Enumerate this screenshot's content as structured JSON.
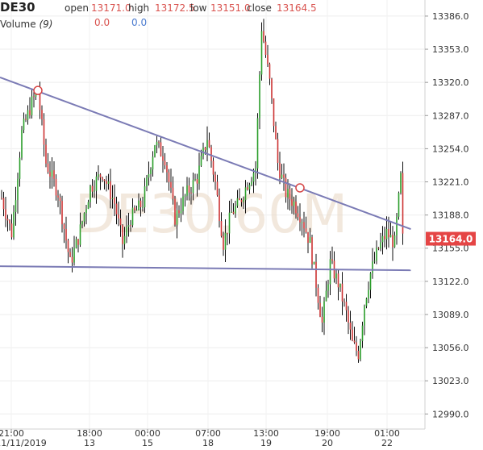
{
  "header": {
    "symbol": "DE30",
    "open_label": "open",
    "open_value": "13171.0",
    "high_label": "high",
    "high_value": "13172.5",
    "low_label": "low",
    "low_value": "13151.0",
    "close_label": "close",
    "close_value": "13164.5",
    "volume_label": "Volume",
    "volume_period": "(9)",
    "volume_value_1": "0.0",
    "volume_value_2": "0.0"
  },
  "watermark": "DE30,60M",
  "colors": {
    "up": "#2a9d2a",
    "down": "#cc3333",
    "wick": "#111111",
    "trendline": "#7b7bb5",
    "price_tag": "#e54545",
    "marker": "#d64545"
  },
  "chart_data": {
    "type": "candlestick",
    "ylim": [
      12975,
      13402
    ],
    "y_ticks": [
      "13386.0",
      "13353.0",
      "13320.0",
      "13287.0",
      "13254.0",
      "13221.0",
      "13188.0",
      "13155.0",
      "13122.0",
      "13089.0",
      "13056.0",
      "13023.0",
      "12990.0"
    ],
    "x_ticks": [
      {
        "time": "21:00",
        "date": "11/11/2019"
      },
      {
        "time": "18:00",
        "date": "13"
      },
      {
        "time": "00:00",
        "date": "15"
      },
      {
        "time": "07:00",
        "date": "18"
      },
      {
        "time": "13:00",
        "date": "19"
      },
      {
        "time": "19:00",
        "date": "20"
      },
      {
        "time": "01:00",
        "date": "22"
      }
    ],
    "current_price": "13164.0",
    "trendlines": [
      {
        "from": [
          0,
          13325
        ],
        "to": [
          199,
          13178
        ]
      },
      {
        "from": [
          0,
          13137
        ],
        "to": [
          199,
          13137
        ]
      }
    ],
    "touch_points": [
      [
        18,
        13312
      ],
      [
        148,
        13215
      ]
    ],
    "anchors": [
      [
        0,
        13205
      ],
      [
        5,
        13170
      ],
      [
        10,
        13270
      ],
      [
        15,
        13300
      ],
      [
        18,
        13312
      ],
      [
        22,
        13240
      ],
      [
        28,
        13210
      ],
      [
        34,
        13140
      ],
      [
        38,
        13165
      ],
      [
        44,
        13215
      ],
      [
        50,
        13230
      ],
      [
        56,
        13200
      ],
      [
        60,
        13160
      ],
      [
        64,
        13185
      ],
      [
        70,
        13200
      ],
      [
        76,
        13260
      ],
      [
        81,
        13245
      ],
      [
        86,
        13185
      ],
      [
        92,
        13210
      ],
      [
        97,
        13225
      ],
      [
        102,
        13265
      ],
      [
        106,
        13220
      ],
      [
        110,
        13160
      ],
      [
        114,
        13190
      ],
      [
        118,
        13200
      ],
      [
        122,
        13220
      ],
      [
        126,
        13235
      ],
      [
        129,
        13375
      ],
      [
        133,
        13320
      ],
      [
        137,
        13240
      ],
      [
        141,
        13210
      ],
      [
        145,
        13200
      ],
      [
        149,
        13185
      ],
      [
        153,
        13160
      ],
      [
        156,
        13120
      ],
      [
        159,
        13080
      ],
      [
        163,
        13140
      ],
      [
        167,
        13120
      ],
      [
        171,
        13090
      ],
      [
        174,
        13060
      ],
      [
        177,
        13050
      ],
      [
        180,
        13100
      ],
      [
        183,
        13130
      ],
      [
        187,
        13155
      ],
      [
        191,
        13170
      ],
      [
        195,
        13160
      ],
      [
        198,
        13225
      ],
      [
        199,
        13164
      ]
    ],
    "volume": [
      0.0,
      0.0
    ]
  }
}
